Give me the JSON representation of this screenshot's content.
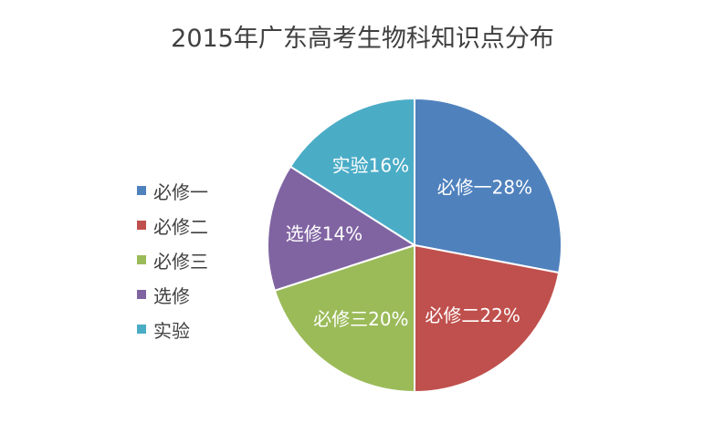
{
  "chart_data": {
    "type": "pie",
    "title": "2015年广东高考生物科知识点分布",
    "categories": [
      "必修一",
      "必修二",
      "必修三",
      "选修",
      "实验"
    ],
    "values": [
      28,
      22,
      20,
      14,
      16
    ],
    "slice_labels": [
      "必修一28%",
      "必修二22%",
      "必修三20%",
      "选修14%",
      "实验16%"
    ],
    "colors": [
      "#4F81BD",
      "#C0504D",
      "#9BBB59",
      "#8064A2",
      "#4BACC6"
    ],
    "legend_position": "left"
  }
}
